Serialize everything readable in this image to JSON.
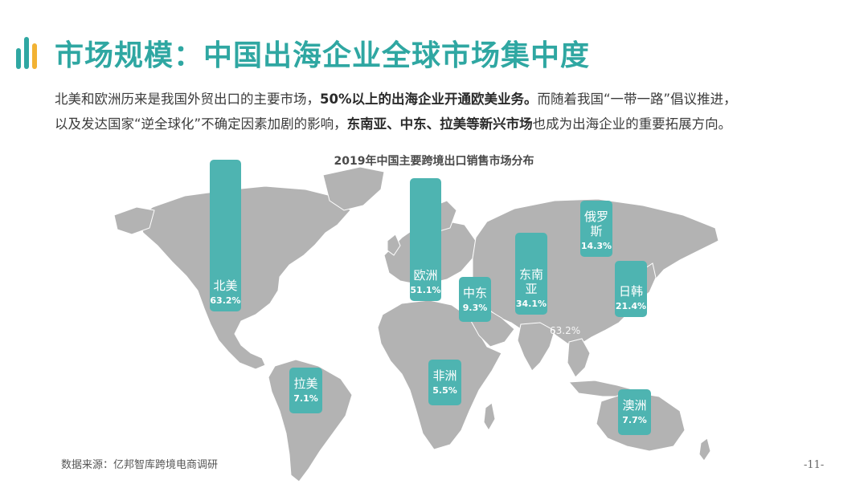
{
  "header": {
    "title": "市场规模：中国出海企业全球市场集中度",
    "accent_colors": [
      "#2fa7a2",
      "#2fa7a2",
      "#f2b233"
    ]
  },
  "description": {
    "line1_pre": "北美和欧洲历来是我国外贸出口的主要市场，",
    "line1_bold": "50%以上的出海企业开通欧美业务。",
    "line1_post": "而随着我国“一带一路”倡议推进，",
    "line2_pre": "以及发达国家“逆全球化”不确定因素加剧的影响，",
    "line2_bold": "东南亚、中东、拉美等新兴市场",
    "line2_post": "也成为出海企业的重要拓展方向。"
  },
  "chart_data": {
    "type": "bar",
    "title": "2019年中国主要跨境出口销售市场分布",
    "unit": "%",
    "categories": [
      "北美",
      "欧洲",
      "东南亚",
      "日韩",
      "俄罗斯",
      "中东",
      "澳洲",
      "拉美",
      "非洲"
    ],
    "values": [
      63.2,
      51.1,
      34.1,
      21.4,
      14.3,
      9.3,
      7.7,
      7.1,
      5.5
    ],
    "value_labels": [
      "63.2%",
      "51.1%",
      "34.1%",
      "21.4%",
      "14.3%",
      "9.3%",
      "7.7%",
      "7.1%",
      "5.5%"
    ],
    "stray_label": "63.2%",
    "bar_color": "#4eb4b1",
    "map_color": "#b3b3b3"
  },
  "footer": {
    "source": "数据来源：亿邦智库跨境电商调研",
    "page_number": "-11-"
  }
}
